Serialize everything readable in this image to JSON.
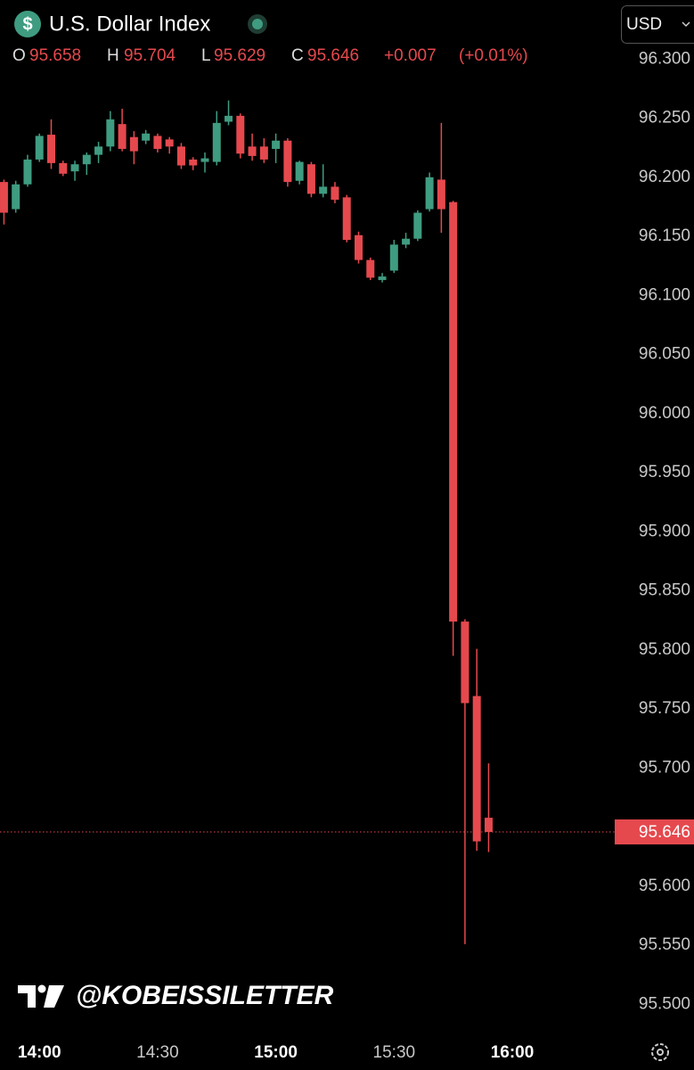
{
  "header": {
    "title": "U.S. Dollar Index",
    "currency": "USD",
    "open_label": "O",
    "high_label": "H",
    "low_label": "L",
    "close_label": "C",
    "change": "+0.007",
    "change_pct": "(+0.01%)"
  },
  "watermark": "@KOBEISSILETTER",
  "chart_data": {
    "type": "candlestick",
    "x": [
      "13:51",
      "13:54",
      "13:57",
      "14:00",
      "14:03",
      "14:06",
      "14:09",
      "14:12",
      "14:15",
      "14:18",
      "14:21",
      "14:24",
      "14:27",
      "14:30",
      "14:33",
      "14:36",
      "14:39",
      "14:42",
      "14:45",
      "14:48",
      "14:51",
      "14:54",
      "14:57",
      "15:00",
      "15:03",
      "15:06",
      "15:09",
      "15:12",
      "15:15",
      "15:18",
      "15:21",
      "15:24",
      "15:27",
      "15:30",
      "15:33",
      "15:36",
      "15:39",
      "15:42",
      "15:45",
      "15:48",
      "15:51",
      "15:54"
    ],
    "open": [
      96.196,
      96.173,
      96.194,
      96.215,
      96.236,
      96.212,
      96.205,
      96.211,
      96.219,
      96.226,
      96.245,
      96.234,
      96.231,
      96.235,
      96.232,
      96.226,
      96.215,
      96.213,
      96.213,
      96.247,
      96.252,
      96.226,
      96.226,
      96.224,
      96.231,
      96.197,
      96.211,
      96.186,
      96.192,
      96.183,
      96.151,
      96.13,
      96.113,
      96.121,
      96.143,
      96.148,
      96.173,
      96.198,
      96.179,
      95.824,
      95.761,
      95.658
    ],
    "high": [
      96.198,
      96.197,
      96.219,
      96.237,
      96.249,
      96.214,
      96.214,
      96.221,
      96.23,
      96.256,
      96.258,
      96.239,
      96.24,
      96.237,
      96.234,
      96.229,
      96.217,
      96.221,
      96.256,
      96.265,
      96.254,
      96.237,
      96.233,
      96.237,
      96.233,
      96.214,
      96.213,
      96.211,
      96.196,
      96.185,
      96.154,
      96.132,
      96.119,
      96.147,
      96.153,
      96.172,
      96.204,
      96.246,
      96.18,
      95.826,
      95.801,
      95.704
    ],
    "low": [
      96.16,
      96.17,
      96.192,
      96.213,
      96.207,
      96.201,
      96.197,
      96.202,
      96.212,
      96.222,
      96.222,
      96.211,
      96.228,
      96.221,
      96.22,
      96.207,
      96.206,
      96.204,
      96.21,
      96.244,
      96.216,
      96.214,
      96.212,
      96.212,
      96.192,
      96.194,
      96.183,
      96.183,
      96.178,
      96.145,
      96.127,
      96.113,
      96.111,
      96.119,
      96.14,
      96.146,
      96.171,
      96.153,
      95.795,
      95.551,
      95.63,
      95.629
    ],
    "close": [
      96.17,
      96.194,
      96.215,
      96.235,
      96.212,
      96.203,
      96.211,
      96.219,
      96.226,
      96.249,
      96.224,
      96.222,
      96.237,
      96.224,
      96.226,
      96.21,
      96.21,
      96.216,
      96.246,
      96.252,
      96.22,
      96.218,
      96.215,
      96.231,
      96.196,
      96.213,
      96.186,
      96.192,
      96.181,
      96.147,
      96.13,
      96.115,
      96.116,
      96.143,
      96.148,
      96.17,
      96.2,
      96.173,
      95.824,
      95.755,
      95.638,
      95.646
    ],
    "up_color": "#3f9c80",
    "down_color": "#e5494e",
    "xlim": [
      "13:50",
      "16:26"
    ],
    "xticks": [
      "14:00",
      "14:30",
      "15:00",
      "15:30",
      "16:00"
    ],
    "ylim": [
      95.48,
      96.35
    ],
    "yticks": [
      {
        "value": 96.3,
        "label": "96.300"
      },
      {
        "value": 96.25,
        "label": "96.250"
      },
      {
        "value": 96.2,
        "label": "96.200"
      },
      {
        "value": 96.15,
        "label": "96.150"
      },
      {
        "value": 96.1,
        "label": "96.100"
      },
      {
        "value": 96.05,
        "label": "96.050"
      },
      {
        "value": 96,
        "label": "96.000"
      },
      {
        "value": 95.95,
        "label": "95.950"
      },
      {
        "value": 95.9,
        "label": "95.900"
      },
      {
        "value": 95.85,
        "label": "95.850"
      },
      {
        "value": 95.8,
        "label": "95.800"
      },
      {
        "value": 95.75,
        "label": "95.750"
      },
      {
        "value": 95.7,
        "label": "95.700"
      },
      {
        "value": 95.6,
        "label": "95.600"
      },
      {
        "value": 95.55,
        "label": "95.550"
      },
      {
        "value": 95.5,
        "label": "95.500"
      }
    ],
    "grid": false
  }
}
